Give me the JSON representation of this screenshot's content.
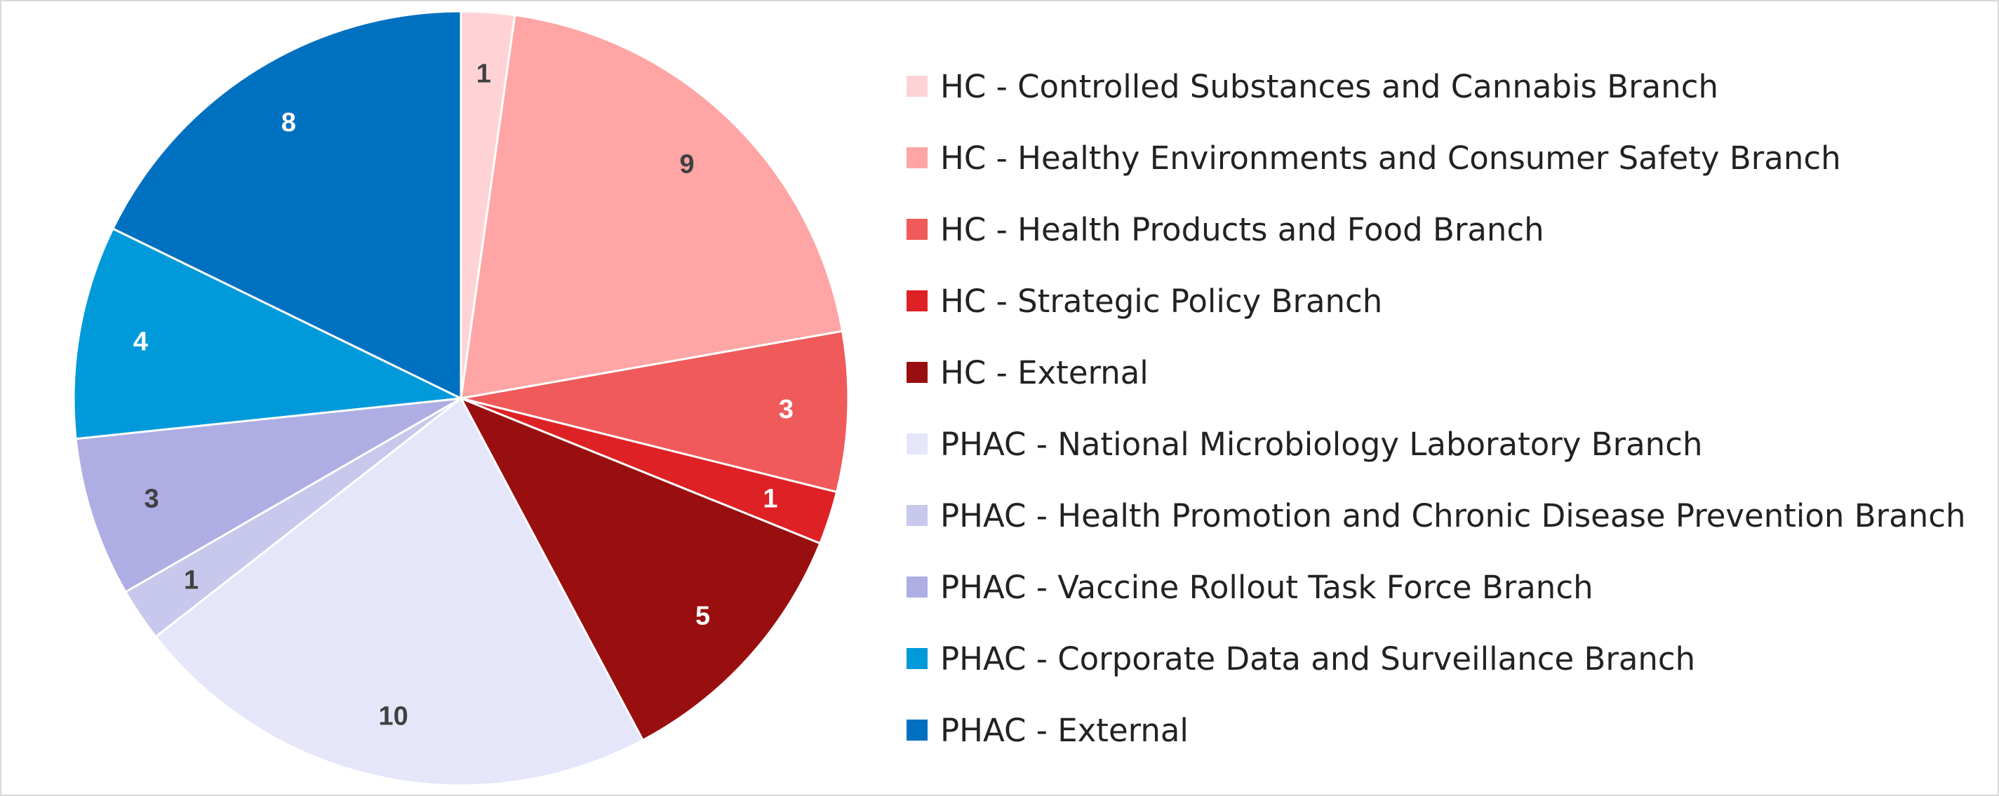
{
  "chart_data": {
    "type": "pie",
    "title": "",
    "categories": [
      "HC - Controlled Substances and Cannabis Branch",
      "HC - Healthy Environments and Consumer Safety Branch",
      "HC - Health Products and Food Branch",
      "HC - Strategic Policy Branch",
      "HC - External",
      "PHAC - National Microbiology Laboratory Branch",
      "PHAC - Health Promotion and Chronic Disease Prevention Branch",
      "PHAC - Vaccine Rollout Task Force Branch",
      "PHAC - Corporate Data and Surveillance Branch",
      "PHAC - External"
    ],
    "values": [
      1,
      9,
      3,
      1,
      5,
      10,
      1,
      3,
      4,
      8
    ],
    "colors": [
      "#FFD3D6",
      "#FFA5A5",
      "#F05A5A",
      "#DE2125",
      "#990F0F",
      "#E6E6FA",
      "#C8C8EC",
      "#AEAEE4",
      "#009ADB",
      "#0070C0"
    ],
    "label_colors": [
      "#404040",
      "#404040",
      "#ffffff",
      "#ffffff",
      "#ffffff",
      "#404040",
      "#404040",
      "#404040",
      "#ffffff",
      "#ffffff"
    ],
    "legend_position": "right",
    "start_angle": "12 o'clock",
    "direction": "clockwise"
  }
}
